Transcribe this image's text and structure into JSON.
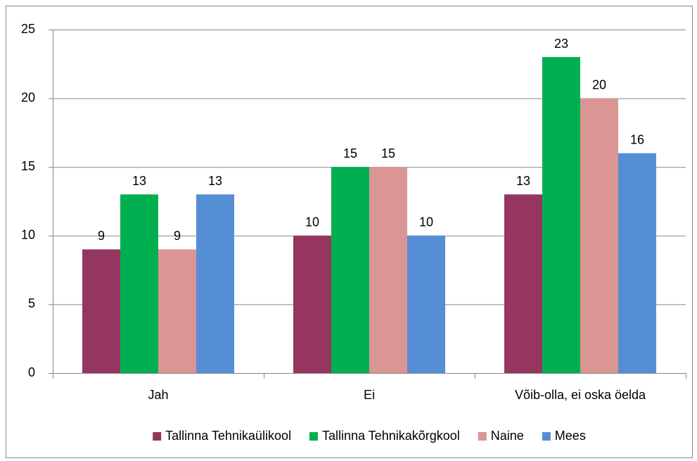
{
  "chart_data": {
    "type": "bar",
    "categories": [
      "Jah",
      "Ei",
      "Võib-olla, ei oska öelda"
    ],
    "series": [
      {
        "name": "Tallinna Tehnikaülikool",
        "color": "#953560",
        "values": [
          9,
          10,
          13
        ]
      },
      {
        "name": "Tallinna Tehnikakõrgkool",
        "color": "#00b050",
        "values": [
          13,
          15,
          23
        ]
      },
      {
        "name": "Naine",
        "color": "#d99694",
        "values": [
          9,
          15,
          20
        ]
      },
      {
        "name": "Mees",
        "color": "#558ed5",
        "values": [
          13,
          10,
          16
        ]
      }
    ],
    "ylim": [
      0,
      25
    ],
    "yticks": [
      0,
      5,
      10,
      15,
      20,
      25
    ],
    "grid": true,
    "legend": "bottom"
  }
}
